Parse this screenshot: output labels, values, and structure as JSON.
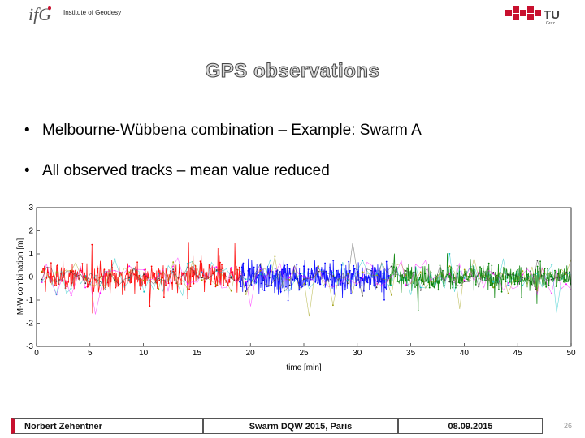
{
  "header": {
    "institute": "Institute of Geodesy",
    "ifg_logo_text": "ifG",
    "tu_logo_text": "TU",
    "tu_logo_sub": "Graz"
  },
  "title": "GPS observations",
  "bullets": [
    "Melbourne-Wübbena combination – Example: Swarm A",
    "All observed tracks – mean value reduced"
  ],
  "chart_data": {
    "type": "scatter",
    "xlabel": "time [min]",
    "ylabel": "M-W combination [m]",
    "xlim": [
      0,
      50
    ],
    "ylim": [
      -3,
      3
    ],
    "xticks": [
      0,
      5,
      10,
      15,
      20,
      25,
      30,
      35,
      40,
      45,
      50
    ],
    "yticks": [
      -3,
      -2,
      -1,
      0,
      1,
      2,
      3
    ],
    "grid": false,
    "series": [
      {
        "color": "#ff0000",
        "x_range": [
          0.5,
          19
        ],
        "y_spread": 0.9
      },
      {
        "color": "#0000ff",
        "x_range": [
          19,
          33
        ],
        "y_spread": 0.9
      },
      {
        "color": "#008000",
        "x_range": [
          33,
          50
        ],
        "y_spread": 0.8
      },
      {
        "color": "#ff00ff",
        "x_range": [
          0.5,
          50
        ],
        "y_spread": 1.0
      },
      {
        "color": "#00bfbf",
        "x_range": [
          0.5,
          50
        ],
        "y_spread": 1.0
      },
      {
        "color": "#999900",
        "x_range": [
          0.5,
          50
        ],
        "y_spread": 1.0
      },
      {
        "color": "#333333",
        "x_range": [
          0.5,
          50
        ],
        "y_spread": 0.8
      }
    ]
  },
  "footer": {
    "author": "Norbert Zehentner",
    "event": "Swarm DQW 2015, Paris",
    "date": "08.09.2015",
    "page": "26"
  },
  "colors": {
    "brand_red": "#c8102e"
  }
}
